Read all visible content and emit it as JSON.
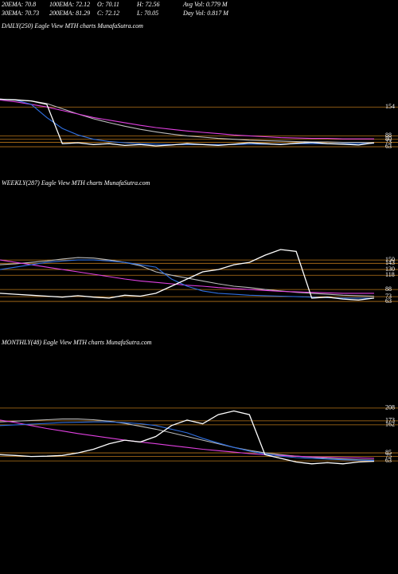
{
  "header": {
    "stats": [
      [
        "20EMA: 70.8",
        "100EMA: 72.12",
        "O: 70.11",
        "H: 72.56",
        "Avg Vol: 0.779 M"
      ],
      [
        "30EMA: 70.73",
        "200EMA: 81.29",
        "C: 72.12",
        "L: 70.05",
        "Day Vol: 0.817 M"
      ]
    ]
  },
  "chart_data": [
    {
      "type": "line",
      "title": "DAILY(250) Eagle  View  MTH charts MunafaSutra.com",
      "ylim": [
        43,
        180
      ],
      "yticks": [
        154,
        88,
        80,
        73,
        63
      ],
      "grid": true,
      "grid_color": "#b8761a",
      "series": [
        {
          "color": "#ffffff",
          "values": [
            172,
            170,
            168,
            160,
            70,
            72,
            68,
            70,
            66,
            68,
            65,
            67,
            70,
            68,
            66,
            69,
            72,
            70,
            68,
            71,
            73,
            70,
            69,
            67,
            72
          ]
        },
        {
          "color": "#2f6fe0",
          "values": [
            172,
            170,
            160,
            130,
            105,
            90,
            80,
            75,
            72,
            70,
            69,
            68,
            68,
            68,
            68,
            68,
            69,
            69,
            69,
            70,
            70,
            70,
            70,
            70,
            71
          ]
        },
        {
          "color": "#e040e0",
          "values": [
            170,
            166,
            160,
            154,
            146,
            138,
            130,
            124,
            118,
            112,
            107,
            103,
            99,
            96,
            93,
            90,
            88,
            86,
            84,
            83,
            82,
            82,
            81,
            81,
            81
          ]
        },
        {
          "color": "#bbbbbb",
          "values": [
            172,
            171,
            168,
            162,
            150,
            138,
            127,
            118,
            110,
            103,
            97,
            92,
            88,
            85,
            82,
            80,
            78,
            77,
            76,
            75,
            74,
            74,
            73,
            73,
            72
          ]
        }
      ]
    },
    {
      "type": "line",
      "title": "WEEKLY(287) Eagle  View  MTH charts MunafaSutra.com",
      "ylim": [
        43,
        177
      ],
      "yticks": [
        150,
        143,
        130,
        118,
        88,
        73,
        63
      ],
      "grid": true,
      "grid_color": "#b8761a",
      "series": [
        {
          "color": "#ffffff",
          "values": [
            80,
            78,
            76,
            74,
            72,
            75,
            72,
            70,
            76,
            74,
            80,
            95,
            110,
            125,
            130,
            140,
            145,
            160,
            172,
            168,
            70,
            72,
            68,
            66,
            70
          ]
        },
        {
          "color": "#2f6fe0",
          "values": [
            130,
            135,
            140,
            145,
            148,
            150,
            150,
            148,
            145,
            140,
            135,
            110,
            95,
            85,
            80,
            78,
            76,
            75,
            74,
            73,
            72,
            71,
            70,
            70,
            70
          ]
        },
        {
          "color": "#e040e0",
          "values": [
            150,
            145,
            140,
            135,
            130,
            125,
            120,
            115,
            110,
            106,
            103,
            100,
            97,
            95,
            92,
            90,
            88,
            86,
            84,
            83,
            82,
            81,
            80,
            80,
            80
          ]
        },
        {
          "color": "#bbbbbb",
          "values": [
            140,
            142,
            145,
            148,
            152,
            155,
            154,
            150,
            145,
            138,
            125,
            118,
            112,
            106,
            100,
            95,
            92,
            88,
            85,
            82,
            80,
            78,
            76,
            75,
            74
          ]
        }
      ]
    },
    {
      "type": "line",
      "title": "MONTHLY(48) Eagle  View  MTH charts MunafaSutra.com",
      "ylim": [
        26,
        234
      ],
      "yticks": [
        208,
        173,
        162,
        85,
        75,
        63
      ],
      "grid": true,
      "grid_color": "#b8761a",
      "series": [
        {
          "color": "#ffffff",
          "values": [
            80,
            78,
            75,
            76,
            78,
            85,
            95,
            110,
            120,
            115,
            130,
            160,
            175,
            165,
            190,
            200,
            190,
            80,
            70,
            60,
            55,
            58,
            55,
            60,
            62
          ]
        },
        {
          "color": "#2f6fe0",
          "values": [
            160,
            162,
            164,
            166,
            168,
            169,
            170,
            170,
            168,
            165,
            160,
            150,
            140,
            125,
            112,
            100,
            90,
            82,
            76,
            72,
            70,
            68,
            66,
            65,
            64
          ]
        },
        {
          "color": "#e040e0",
          "values": [
            175,
            168,
            160,
            152,
            145,
            138,
            132,
            126,
            120,
            115,
            110,
            105,
            100,
            95,
            91,
            87,
            83,
            80,
            78,
            76,
            74,
            73,
            72,
            71,
            70
          ]
        },
        {
          "color": "#bbbbbb",
          "values": [
            170,
            172,
            174,
            176,
            178,
            178,
            176,
            172,
            166,
            158,
            150,
            140,
            130,
            120,
            110,
            100,
            92,
            85,
            80,
            76,
            73,
            70,
            68,
            66,
            65
          ]
        }
      ]
    }
  ]
}
